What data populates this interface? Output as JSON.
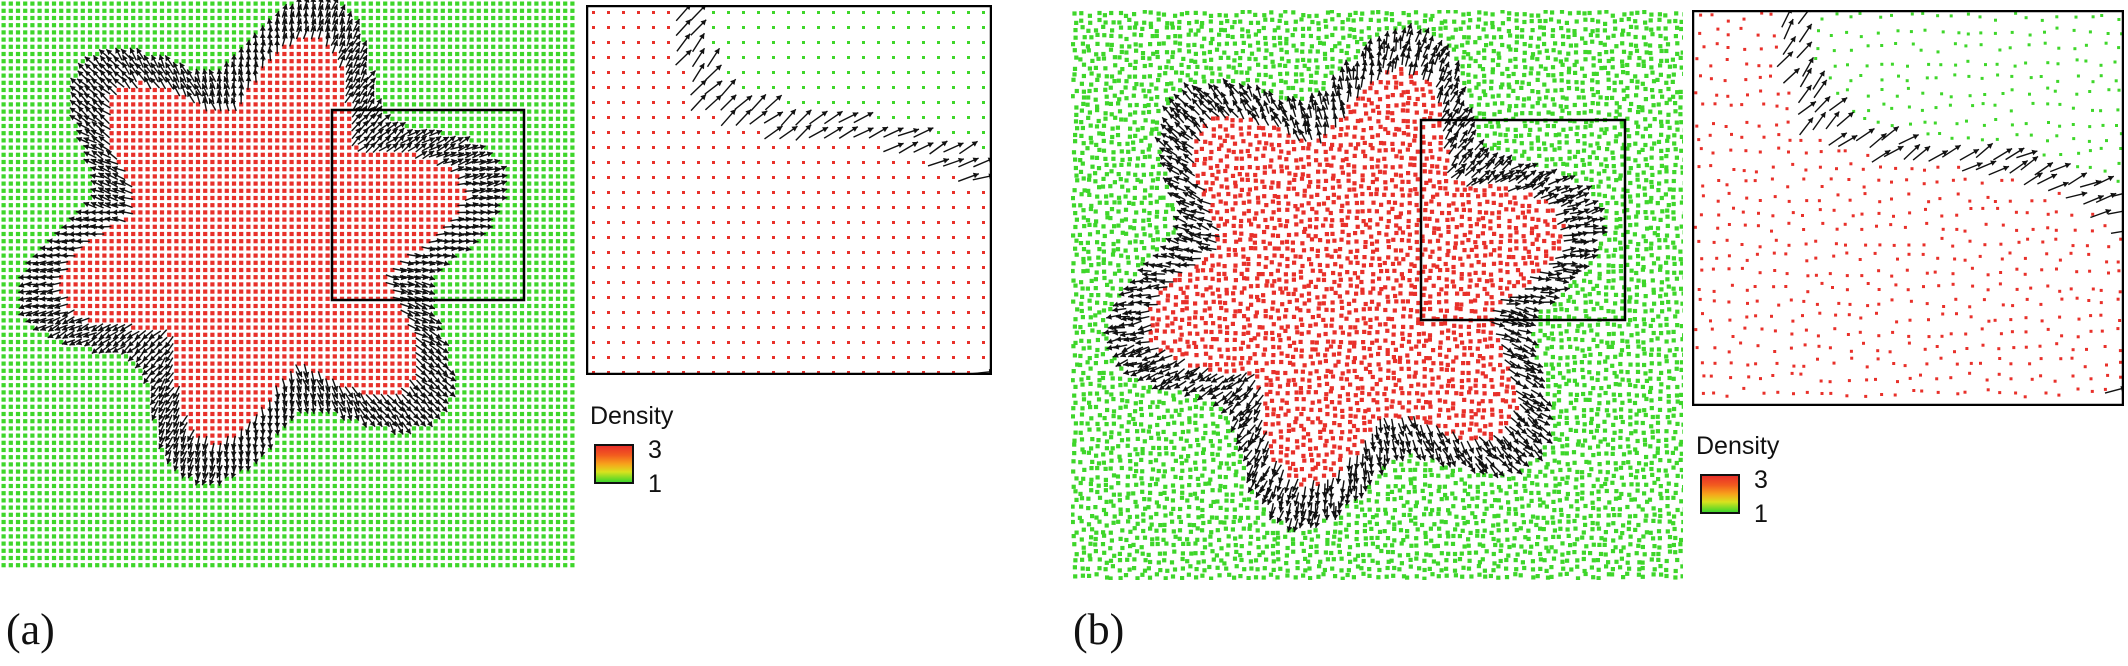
{
  "panels": [
    {
      "label": "(a)",
      "legend": {
        "title": "Density",
        "max": "3",
        "min": "1"
      }
    },
    {
      "label": "(b)",
      "legend": {
        "title": "Density",
        "max": "3",
        "min": "1"
      }
    }
  ],
  "colors": {
    "low_density": "#3ed62a",
    "high_density": "#e8302a",
    "arrow": "#111111",
    "frame": "#000000"
  }
}
